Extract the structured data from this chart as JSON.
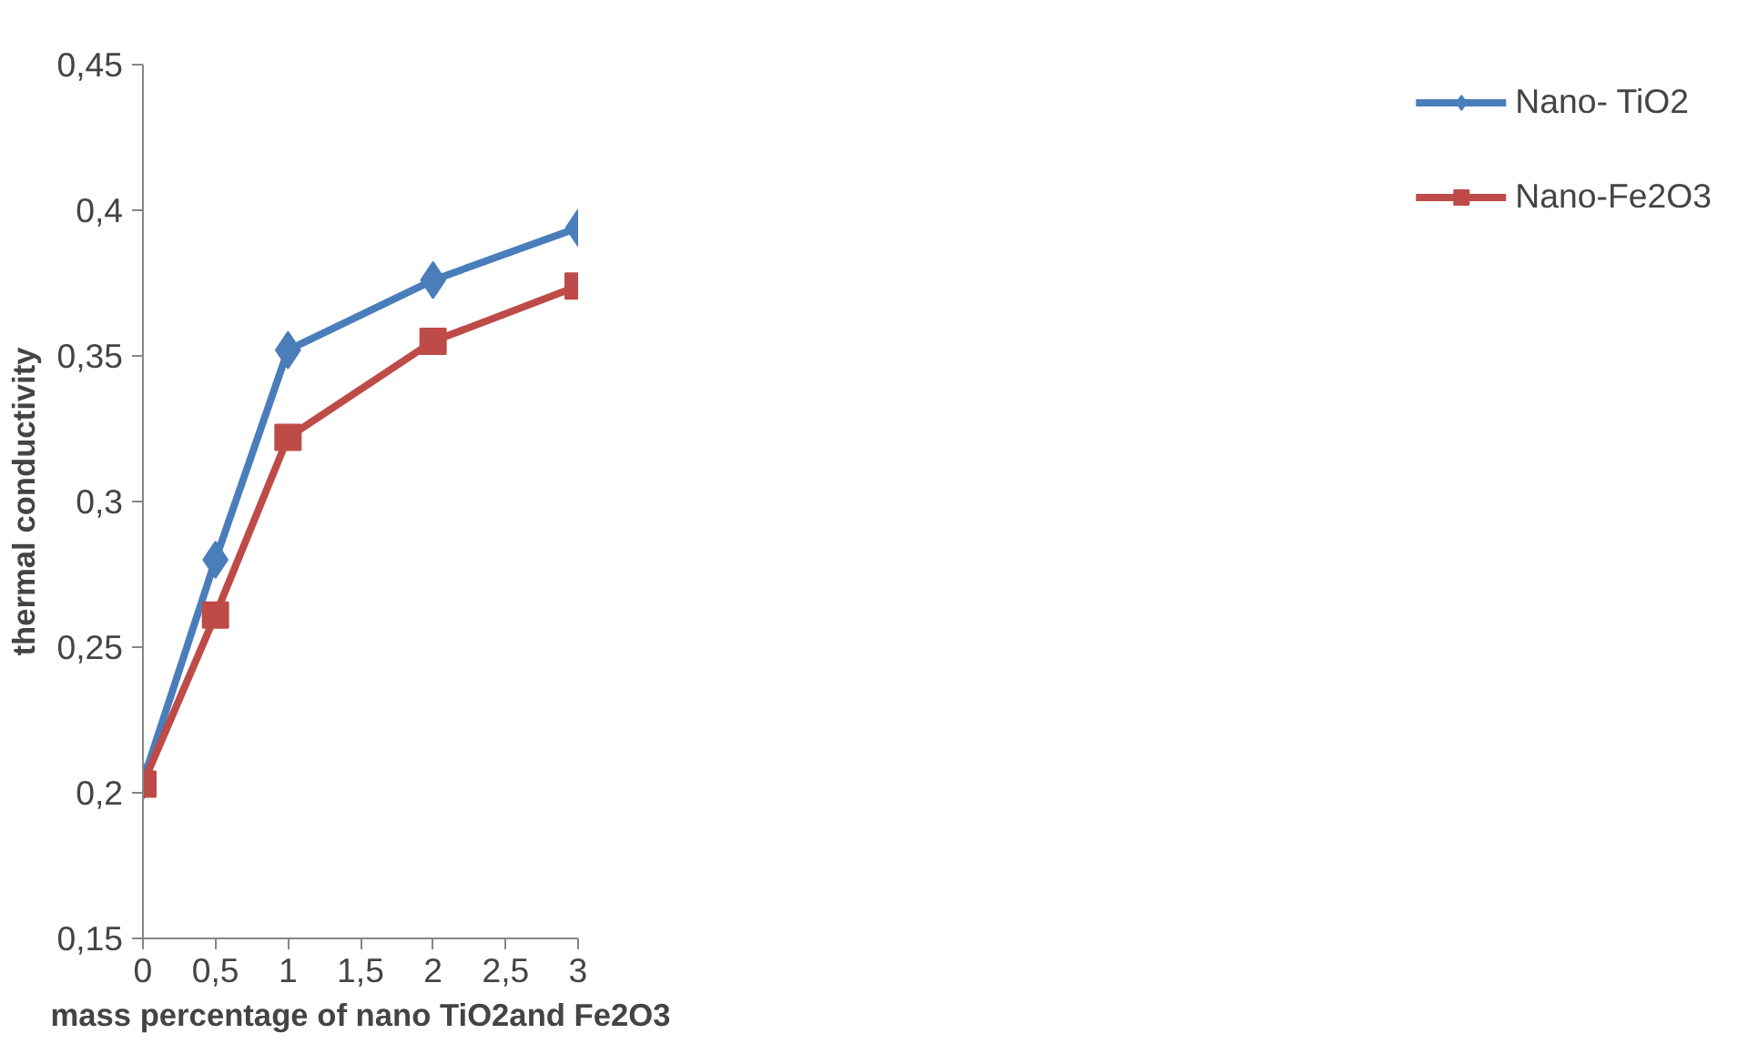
{
  "chart_data": {
    "type": "line",
    "xlabel": "mass percentage of nano TiO2and Fe2O3",
    "ylabel": "thermal conductivity",
    "x": [
      0,
      0.5,
      1,
      2,
      3
    ],
    "series": [
      {
        "name": "Nano- TiO2",
        "color": "#4a7ebb",
        "marker": "diamond",
        "values": [
          0.204,
          0.28,
          0.352,
          0.376,
          0.394
        ]
      },
      {
        "name": "Nano-Fe2O3",
        "color": "#be4b48",
        "marker": "square",
        "values": [
          0.203,
          0.261,
          0.322,
          0.355,
          0.374
        ]
      }
    ],
    "xlim": [
      0,
      3
    ],
    "ylim": [
      0.15,
      0.45
    ],
    "xticks": [
      0,
      {
        "value": 0.5,
        "label": "0,5"
      },
      1,
      {
        "value": 1.5,
        "label": "1,5"
      },
      2,
      {
        "value": 2.5,
        "label": "2,5"
      },
      3
    ],
    "yticks": [
      {
        "value": 0.15,
        "label": "0,15"
      },
      {
        "value": 0.2,
        "label": "0,2"
      },
      {
        "value": 0.25,
        "label": "0,25"
      },
      {
        "value": 0.3,
        "label": "0,3"
      },
      {
        "value": 0.35,
        "label": "0,35"
      },
      {
        "value": 0.4,
        "label": "0,4"
      },
      {
        "value": 0.45,
        "label": "0,45"
      }
    ],
    "grid": false,
    "legend": "right",
    "line_style": "solid"
  }
}
